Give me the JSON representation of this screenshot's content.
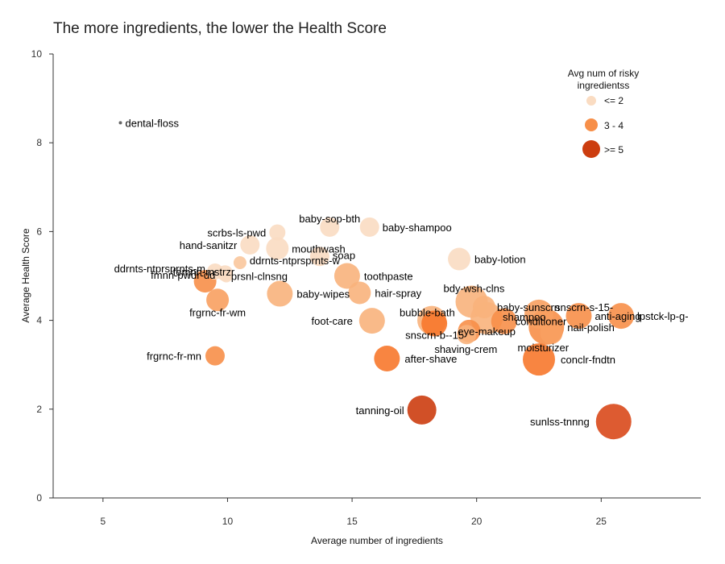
{
  "chart_data": {
    "type": "scatter",
    "title": "The more ingredients, the lower the Health Score",
    "xlabel": "Average number of ingredients",
    "ylabel": "Average Health Score",
    "xlim": [
      3,
      29
    ],
    "ylim": [
      0,
      10
    ],
    "xticks": [
      "5",
      "10",
      "15",
      "20",
      "25"
    ],
    "yticks": [
      "0",
      "2",
      "4",
      "6",
      "8",
      "10"
    ],
    "grid": false,
    "legend": {
      "title_line1": "Avg num of risky",
      "title_line2": "ingredientss",
      "placement": "top-right",
      "entries": [
        {
          "label": "<= 2",
          "color": "#fadcc2"
        },
        {
          "label": "3 - 4",
          "color": "#f78f49"
        },
        {
          "label": ">= 5",
          "color": "#cc3d0f"
        }
      ]
    },
    "points": [
      {
        "name": "dental-floss",
        "x": 5.7,
        "y": 8.45,
        "size": 1,
        "color": "#555555"
      },
      {
        "name": "baby-sop-bth",
        "x": 14.1,
        "y": 6.1,
        "size": 4,
        "color": "#fadcc2"
      },
      {
        "name": "baby-shampoo",
        "x": 15.7,
        "y": 6.1,
        "size": 4,
        "color": "#fadcc2"
      },
      {
        "name": "scrbs-ls-pwd",
        "x": 12.0,
        "y": 5.98,
        "size": 3,
        "color": "#fadcc2"
      },
      {
        "name": "hand-sanitzr",
        "x": 10.9,
        "y": 5.7,
        "size": 4,
        "color": "#fadcc2"
      },
      {
        "name": "mouthwash",
        "x": 12.0,
        "y": 5.62,
        "size": 5,
        "color": "#fadcc2"
      },
      {
        "name": "soap",
        "x": 13.7,
        "y": 5.44,
        "size": 4,
        "color": "#fadcc2"
      },
      {
        "name": "ddrnts-ntprsprnts-w",
        "x": 10.5,
        "y": 5.3,
        "size": 2,
        "color": "#f9c79c"
      },
      {
        "name": "baby-lotion",
        "x": 19.3,
        "y": 5.38,
        "size": 5,
        "color": "#fadcc2"
      },
      {
        "name": "ddrnts-ntprsprnts-m",
        "x": 9.5,
        "y": 5.1,
        "size": 3,
        "color": "#fadcc2"
      },
      {
        "name": "fmnn-pwdr-dd",
        "x": 9.9,
        "y": 5.06,
        "size": 3,
        "color": "#fadcc2"
      },
      {
        "name": "prsnl-clnsng",
        "x": 9.95,
        "y": 5.0,
        "size": 2,
        "color": "#fadcc2"
      },
      {
        "name": "toothpaste",
        "x": 14.8,
        "y": 5.0,
        "size": 6,
        "color": "#f8b27c"
      },
      {
        "name": "femnn-mstrzr",
        "x": 9.1,
        "y": 4.88,
        "size": 5,
        "color": "#f78f49"
      },
      {
        "name": "baby-wipes",
        "x": 12.1,
        "y": 4.6,
        "size": 6,
        "color": "#f8b27c"
      },
      {
        "name": "hair-spray",
        "x": 15.3,
        "y": 4.62,
        "size": 5,
        "color": "#f8b27c"
      },
      {
        "name": "frgrnc-fr-wm",
        "x": 9.6,
        "y": 4.46,
        "size": 5,
        "color": "#f8a060"
      },
      {
        "name": "bdy-wsh-clns",
        "x": 19.8,
        "y": 4.42,
        "size": 8,
        "color": "#f8b27c"
      },
      {
        "name": "baby-sunscrn",
        "x": 20.3,
        "y": 4.3,
        "size": 5,
        "color": "#f8b27c"
      },
      {
        "name": "snscrn-s-15-",
        "x": 22.5,
        "y": 4.14,
        "size": 7,
        "color": "#f8a060"
      },
      {
        "name": "anti-aging",
        "x": 24.1,
        "y": 4.1,
        "size": 6,
        "color": "#f78f49"
      },
      {
        "name": "lpstck-lp-g-",
        "x": 25.8,
        "y": 4.1,
        "size": 6,
        "color": "#f78f49"
      },
      {
        "name": "shampoo",
        "x": 20.4,
        "y": 4.05,
        "size": 8,
        "color": "#f8b27c"
      },
      {
        "name": "conditioner",
        "x": 21.1,
        "y": 3.98,
        "size": 6,
        "color": "#f78f49"
      },
      {
        "name": "bubble-bath",
        "x": 18.2,
        "y": 4.0,
        "size": 7,
        "color": "#f8b27c"
      },
      {
        "name": "foot-care",
        "x": 15.8,
        "y": 3.99,
        "size": 6,
        "color": "#f8b27c"
      },
      {
        "name": "nail-polish",
        "x": 22.8,
        "y": 3.85,
        "size": 9,
        "color": "#f78f49"
      },
      {
        "name": "snscrn-b--15",
        "x": 18.3,
        "y": 3.93,
        "size": 6,
        "color": "#f7782c"
      },
      {
        "name": "eye-makeup",
        "x": 19.7,
        "y": 3.76,
        "size": 5,
        "color": "#f78f49"
      },
      {
        "name": "moisturizer",
        "x": 23.0,
        "y": 3.72,
        "size": 5,
        "color": "#f8a060"
      },
      {
        "name": "shaving-crem",
        "x": 19.6,
        "y": 3.68,
        "size": 4,
        "color": "#f8b27c"
      },
      {
        "name": "frgrnc-fr-mn",
        "x": 9.5,
        "y": 3.2,
        "size": 4,
        "color": "#f78f49"
      },
      {
        "name": "after-shave",
        "x": 16.4,
        "y": 3.14,
        "size": 6,
        "color": "#f7782c"
      },
      {
        "name": "conclr-fndtn",
        "x": 22.5,
        "y": 3.12,
        "size": 8,
        "color": "#f7782c"
      },
      {
        "name": "tanning-oil",
        "x": 17.8,
        "y": 1.98,
        "size": 7,
        "color": "#cc3d0f"
      },
      {
        "name": "sunlss-tnnng",
        "x": 25.5,
        "y": 1.72,
        "size": 9,
        "color": "#d9491b"
      }
    ]
  }
}
